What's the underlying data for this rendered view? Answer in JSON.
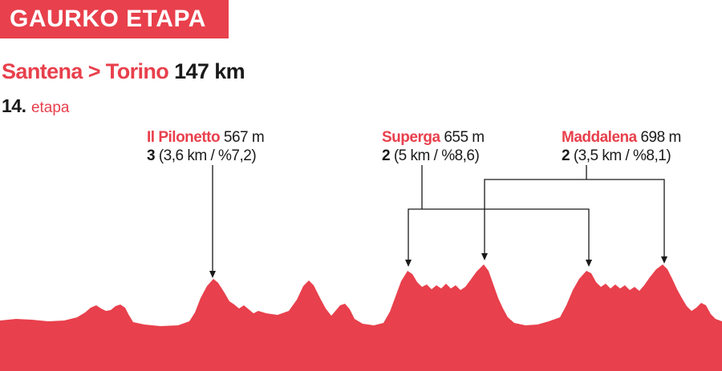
{
  "header": {
    "badge": "GAURKO ETAPA"
  },
  "route": {
    "places": "Santena > Torino",
    "distance": "147 km"
  },
  "stage": {
    "number": "14.",
    "label": "etapa"
  },
  "climbs": [
    {
      "name": "Il Pilonetto",
      "altitude": "567 m",
      "category": "3",
      "detail": "(3,6 km / %7,2)",
      "passes": 1
    },
    {
      "name": "Superga",
      "altitude": "655 m",
      "category": "2",
      "detail": "(5 km / %8,6)",
      "passes": 2
    },
    {
      "name": "Maddalena",
      "altitude": "698 m",
      "category": "2",
      "detail": "(3,5 km / %8,1)",
      "passes": 2
    }
  ],
  "colors": {
    "accent": "#e8404c",
    "text": "#1a1a1a",
    "connector": "#1a1a1a"
  }
}
